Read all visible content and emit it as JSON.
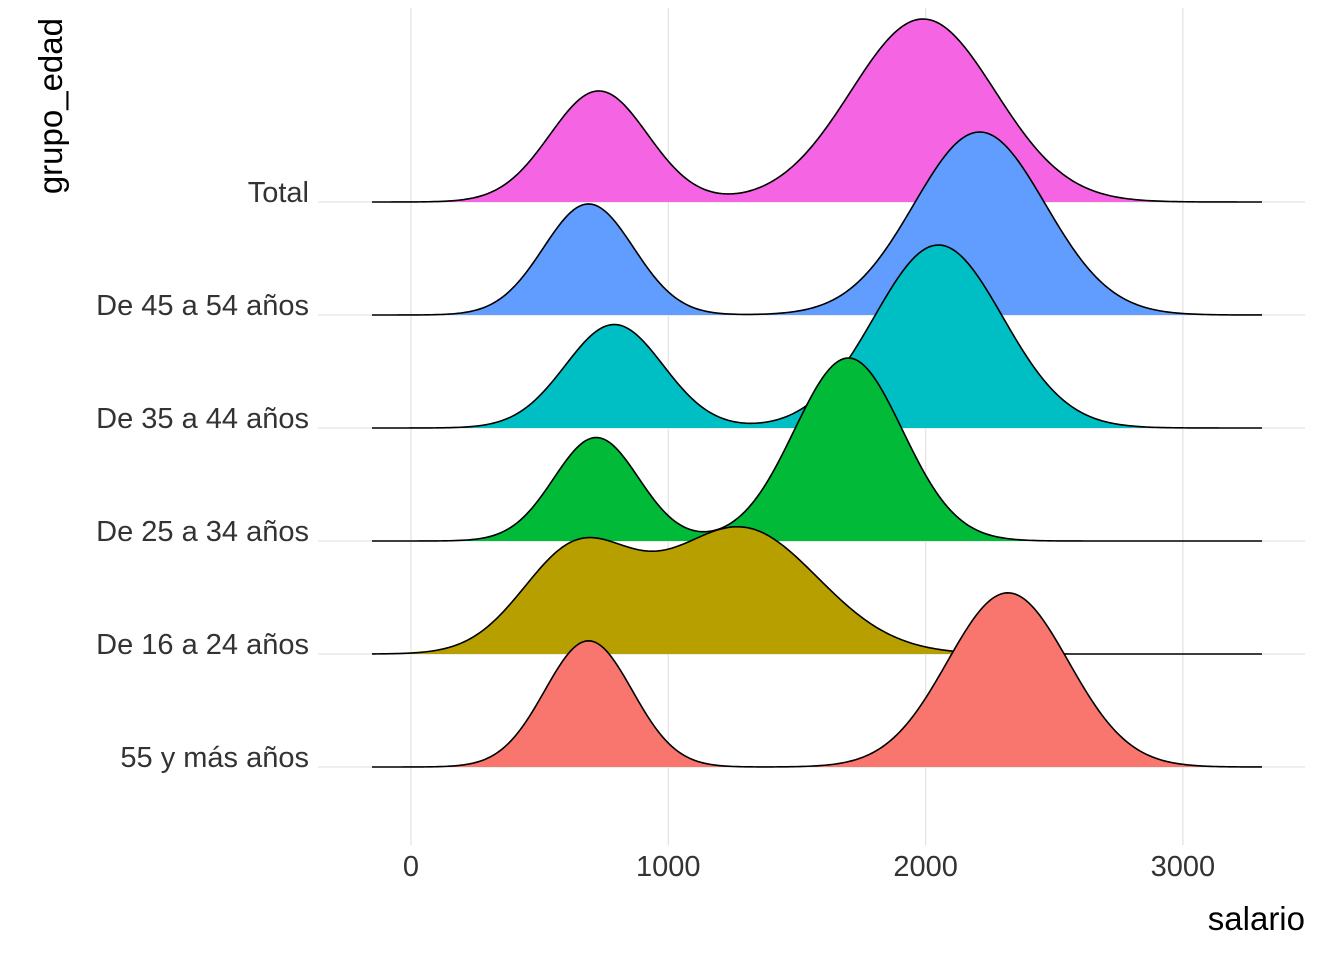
{
  "chart_data": {
    "type": "ridgeline",
    "xlabel": "salario",
    "ylabel": "grupo_edad",
    "xlim": [
      -150,
      3330
    ],
    "x_ticks": [
      0,
      1000,
      2000,
      3000
    ],
    "x_tick_labels": [
      "0",
      "1000",
      "2000",
      "3000"
    ],
    "grid": true,
    "legend": "none",
    "series": [
      {
        "name": "55 y más años",
        "color": "#F8766D",
        "components": [
          {
            "mu": 690,
            "sigma": 170,
            "weight": 1.0
          },
          {
            "mu": 2320,
            "sigma": 235,
            "weight": 1.38
          }
        ]
      },
      {
        "name": "De 16 a 24 años",
        "color": "#B79F00",
        "components": [
          {
            "mu": 640,
            "sigma": 210,
            "weight": 0.8
          },
          {
            "mu": 1280,
            "sigma": 300,
            "weight": 1.0
          }
        ]
      },
      {
        "name": "De 25 a 34 años",
        "color": "#00BA38",
        "components": [
          {
            "mu": 720,
            "sigma": 165,
            "weight": 0.82
          },
          {
            "mu": 1700,
            "sigma": 210,
            "weight": 1.45
          }
        ]
      },
      {
        "name": "De 35 a 44 años",
        "color": "#00BFC4",
        "components": [
          {
            "mu": 790,
            "sigma": 190,
            "weight": 0.82
          },
          {
            "mu": 2050,
            "sigma": 250,
            "weight": 1.45
          }
        ]
      },
      {
        "name": "De 45 a 54 años",
        "color": "#619CFF",
        "components": [
          {
            "mu": 690,
            "sigma": 175,
            "weight": 0.88
          },
          {
            "mu": 2210,
            "sigma": 255,
            "weight": 1.45
          }
        ]
      },
      {
        "name": "Total",
        "color": "#F564E3",
        "components": [
          {
            "mu": 730,
            "sigma": 190,
            "weight": 0.88
          },
          {
            "mu": 1990,
            "sigma": 280,
            "weight": 1.45
          }
        ]
      }
    ]
  }
}
